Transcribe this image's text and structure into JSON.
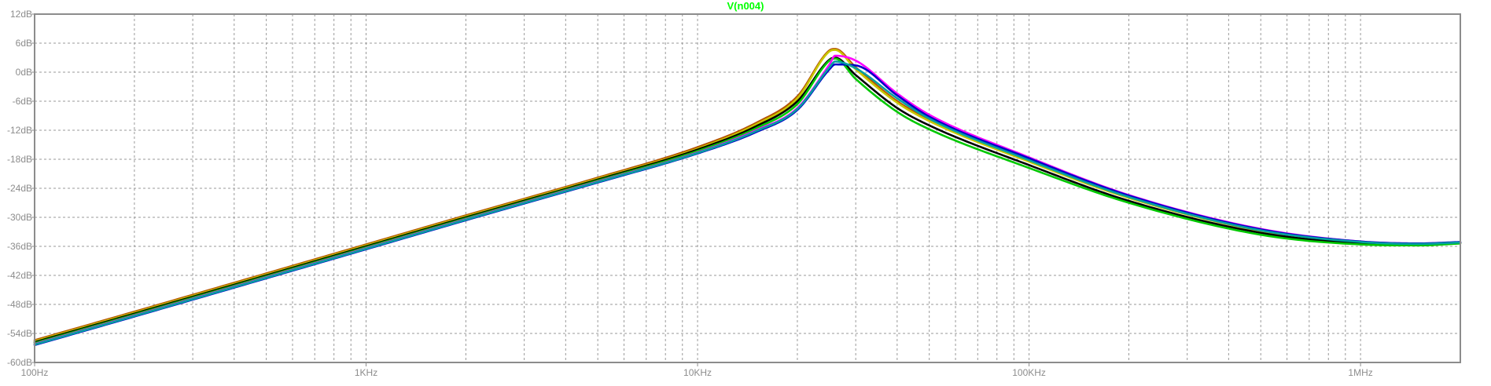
{
  "chart_data": {
    "type": "line",
    "title": "V(n004)",
    "title_color": "#00ff00",
    "xscale": "log",
    "xlim": [
      100,
      2000000
    ],
    "ylim": [
      -60,
      12
    ],
    "grid": true,
    "legend": "none",
    "x_ticks": [
      {
        "value": 100,
        "label": "100Hz"
      },
      {
        "value": 1000,
        "label": "1KHz"
      },
      {
        "value": 10000,
        "label": "10KHz"
      },
      {
        "value": 100000,
        "label": "100KHz"
      },
      {
        "value": 1000000,
        "label": "1MHz"
      }
    ],
    "y_ticks": [
      {
        "value": 12,
        "label": "12dB"
      },
      {
        "value": 6,
        "label": "6dB"
      },
      {
        "value": 0,
        "label": "0dB"
      },
      {
        "value": -6,
        "label": "-6dB"
      },
      {
        "value": -12,
        "label": "-12dB"
      },
      {
        "value": -18,
        "label": "-18dB"
      },
      {
        "value": -24,
        "label": "-24dB"
      },
      {
        "value": -30,
        "label": "-30dB"
      },
      {
        "value": -36,
        "label": "-36dB"
      },
      {
        "value": -42,
        "label": "-42dB"
      },
      {
        "value": -48,
        "label": "-48dB"
      },
      {
        "value": -54,
        "label": "-54dB"
      },
      {
        "value": -60,
        "label": "-60dB"
      }
    ],
    "x": [
      100,
      200,
      500,
      1000,
      2000,
      5000,
      10000,
      15000,
      20000,
      25000,
      26000,
      30000,
      40000,
      50000,
      100000,
      200000,
      500000,
      1000000,
      1500000,
      2000000
    ],
    "series": [
      {
        "color": "#b45000",
        "values": [
          -55.4,
          -49.5,
          -41.6,
          -35.6,
          -29.6,
          -21.8,
          -15.5,
          -10.5,
          -5.0,
          4.5,
          4.8,
          1.0,
          -6.0,
          -9.8,
          -18.3,
          -25.8,
          -32.6,
          -35.1,
          -35.5,
          -35.2
        ]
      },
      {
        "color": "#c8c800",
        "values": [
          -55.6,
          -49.7,
          -41.8,
          -35.8,
          -29.8,
          -22.0,
          -15.8,
          -10.8,
          -5.4,
          4.3,
          4.6,
          0.6,
          -6.3,
          -10.1,
          -18.5,
          -26.0,
          -32.8,
          -35.2,
          -35.6,
          -35.3
        ]
      },
      {
        "color": "#000000",
        "values": [
          -55.8,
          -49.9,
          -42.0,
          -36.0,
          -30.0,
          -22.2,
          -16.0,
          -11.2,
          -6.0,
          2.6,
          3.0,
          -0.6,
          -7.4,
          -11.0,
          -19.2,
          -26.6,
          -33.2,
          -35.4,
          -35.7,
          -35.3
        ]
      },
      {
        "color": "#00c800",
        "values": [
          -56.0,
          -50.1,
          -42.2,
          -36.2,
          -30.2,
          -22.4,
          -16.3,
          -11.6,
          -6.6,
          2.4,
          2.8,
          -1.4,
          -8.2,
          -11.8,
          -19.8,
          -27.0,
          -33.6,
          -35.6,
          -35.8,
          -35.4
        ]
      },
      {
        "color": "#ff00ff",
        "values": [
          -56.2,
          -50.3,
          -42.4,
          -36.4,
          -30.4,
          -22.6,
          -16.6,
          -12.0,
          -7.4,
          1.6,
          3.4,
          2.4,
          -4.4,
          -8.8,
          -17.6,
          -25.4,
          -32.4,
          -35.0,
          -35.4,
          -35.2
        ]
      },
      {
        "color": "#0000c8",
        "values": [
          -56.4,
          -50.5,
          -42.6,
          -36.6,
          -30.6,
          -22.8,
          -16.8,
          -12.4,
          -7.8,
          0.6,
          1.6,
          1.4,
          -4.8,
          -9.2,
          -17.8,
          -25.5,
          -32.5,
          -35.0,
          -35.4,
          -35.1
        ]
      },
      {
        "color": "#00a0a0",
        "values": [
          -56.3,
          -50.4,
          -42.5,
          -36.5,
          -30.5,
          -22.7,
          -16.7,
          -12.2,
          -7.6,
          1.0,
          2.2,
          0.8,
          -5.4,
          -9.6,
          -18.2,
          -25.8,
          -32.7,
          -35.1,
          -35.5,
          -35.2
        ]
      }
    ]
  }
}
